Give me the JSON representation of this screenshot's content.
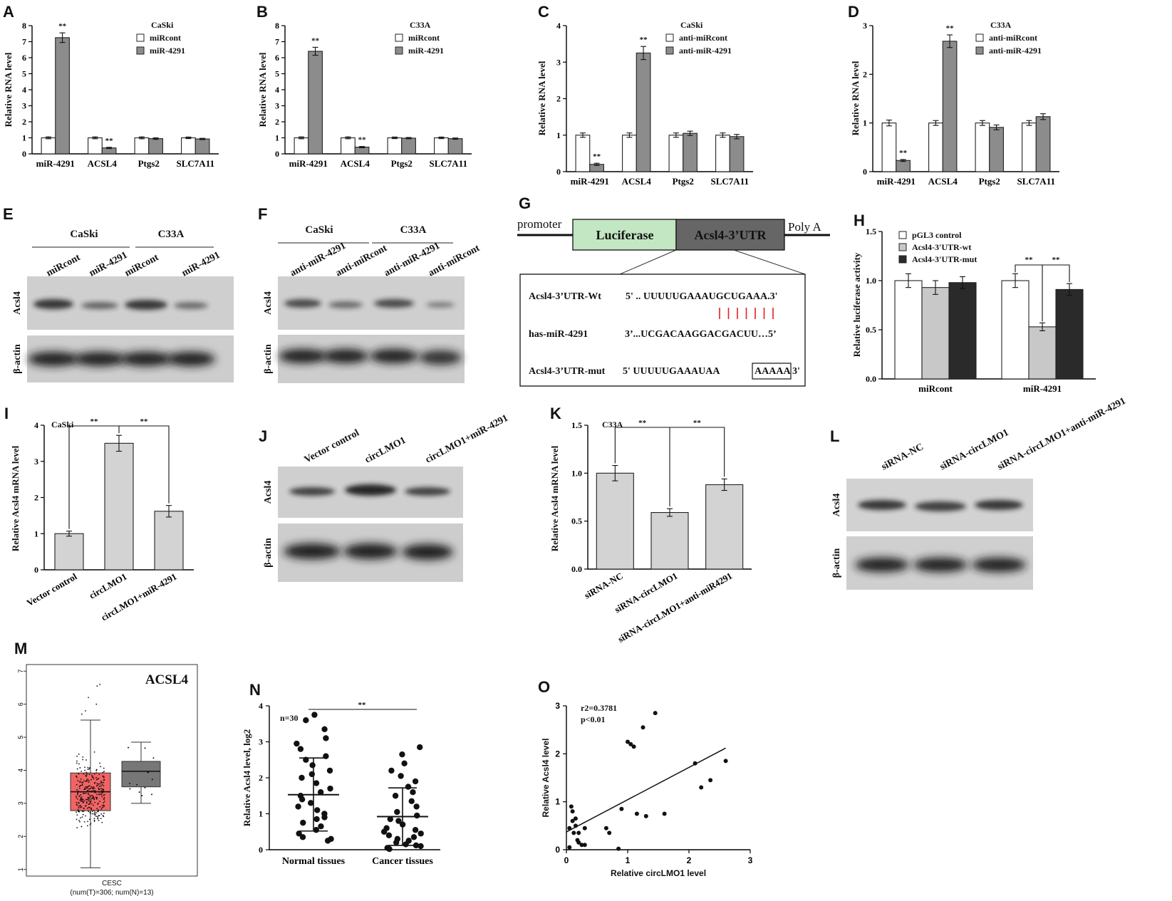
{
  "panels": {
    "A": {
      "letter": "A",
      "cell": "CaSki",
      "ylabel": "Relative RNA level",
      "legend": [
        "miRcont",
        "miR-4291"
      ],
      "sig": [
        "**",
        "**"
      ]
    },
    "B": {
      "letter": "B",
      "cell": "C33A",
      "ylabel": "Relative RNA level",
      "legend": [
        "miRcont",
        "miR-4291"
      ],
      "sig": [
        "**",
        "**"
      ]
    },
    "C": {
      "letter": "C",
      "cell": "CaSki",
      "ylabel": "Relative RNA level",
      "legend": [
        "anti-miRcont",
        "anti-miR-4291"
      ],
      "sig": [
        "**",
        "**"
      ]
    },
    "D": {
      "letter": "D",
      "cell": "C33A",
      "ylabel": "Relative RNA level",
      "legend": [
        "anti-miRcont",
        "anti-miR-4291"
      ],
      "sig": [
        "**",
        "**"
      ]
    },
    "E": {
      "letter": "E",
      "groups": [
        "CaSki",
        "C33A"
      ],
      "lanes": [
        "miRcont",
        "miR-4291",
        "miRcont",
        "miR-4291"
      ],
      "rows": [
        "Acsl4",
        "β-actin"
      ]
    },
    "F": {
      "letter": "F",
      "groups": [
        "CaSki",
        "C33A"
      ],
      "lanes": [
        "anti-miR-4291",
        "anti-miRcont",
        "anti-miR-4291",
        "anti-miRcont"
      ],
      "rows": [
        "Acsl4",
        "β-actin"
      ]
    },
    "G": {
      "letter": "G",
      "promoter": "promoter",
      "luciferase": "Luciferase",
      "utr": "Acsl4-3’UTR",
      "polya": "Poly A",
      "wt_label": "Acsl4-3’UTR-Wt",
      "wt_seq": "5' .. UUUUUGAAAUGCUGAAA.3'",
      "mir_label": "has-miR-4291",
      "mir_seq": "3’...UCGACAAGGACGACUU…5’",
      "mut_label": "Acsl4-3’UTR-mut",
      "mut_seq_a": "5' UUUUUGAAAUAA",
      "mut_seq_box": "AAAAA",
      "mut_seq_c": " 3'"
    },
    "H": {
      "letter": "H",
      "ylabel": "Relative luciferase activity",
      "legend": [
        "pGL3 control",
        "Acsl4-3'UTR-wt",
        "Acsl4-3'UTR-mut"
      ],
      "sig": "**"
    },
    "I": {
      "letter": "I",
      "cell": "CaSki",
      "ylabel": "Relative Acsl4 mRNA level",
      "sig": "**"
    },
    "J": {
      "letter": "J",
      "lanes": [
        "Vector control",
        "circLMO1",
        "circLMO1+miR-4291"
      ],
      "rows": [
        "Acsl4",
        "β-actin"
      ]
    },
    "K": {
      "letter": "K",
      "cell": "C33A",
      "ylabel": "Relative Acsl4 mRNA level",
      "sig": "**"
    },
    "L": {
      "letter": "L",
      "lanes": [
        "siRNA-NC",
        "siRNA-circLMO1",
        "siRNA-circLMO1+anti-miR-4291"
      ],
      "rows": [
        "Acsl4",
        "β-actin"
      ]
    },
    "M": {
      "letter": "M",
      "title": "ACSL4",
      "xlabel": "CESC",
      "xsub": "(num(T)=306; num(N)=13)"
    },
    "N": {
      "letter": "N",
      "ylabel": "Relative Acsl4 level, log2",
      "n": "n=30",
      "sig": "**"
    },
    "O": {
      "letter": "O",
      "ylabel": "Relative Acsl4 level",
      "xlabel": "Relative circLMO1 level",
      "r2": "r2=0.3781",
      "p": "p<0.01"
    }
  },
  "chart_data": [
    {
      "panel": "A",
      "type": "bar",
      "categories": [
        "miR-4291",
        "ACSL4",
        "Ptgs2",
        "SLC7A11"
      ],
      "ylim": [
        0,
        8
      ],
      "ticks": [
        0,
        1,
        2,
        3,
        4,
        5,
        6,
        7,
        8
      ],
      "series": [
        {
          "name": "miRcont",
          "values": [
            1.0,
            1.0,
            1.0,
            1.0
          ],
          "errors": [
            0.06,
            0.06,
            0.06,
            0.05
          ],
          "color": "#ffffff"
        },
        {
          "name": "miR-4291",
          "values": [
            7.25,
            0.37,
            0.95,
            0.93
          ],
          "errors": [
            0.3,
            0.04,
            0.05,
            0.04
          ],
          "color": "#8c8c8c"
        }
      ]
    },
    {
      "panel": "B",
      "type": "bar",
      "categories": [
        "miR-4291",
        "ACSL4",
        "Ptgs2",
        "SLC7A11"
      ],
      "ylim": [
        0,
        8
      ],
      "ticks": [
        0,
        1,
        2,
        3,
        4,
        5,
        6,
        7,
        8
      ],
      "series": [
        {
          "name": "miRcont",
          "values": [
            1.0,
            1.0,
            1.0,
            1.0
          ],
          "errors": [
            0.06,
            0.06,
            0.05,
            0.05
          ],
          "color": "#ffffff"
        },
        {
          "name": "miR-4291",
          "values": [
            6.4,
            0.42,
            0.98,
            0.95
          ],
          "errors": [
            0.25,
            0.04,
            0.04,
            0.04
          ],
          "color": "#8c8c8c"
        }
      ]
    },
    {
      "panel": "C",
      "type": "bar",
      "categories": [
        "miR-4291",
        "ACSL4",
        "Ptgs2",
        "SLC7A11"
      ],
      "ylim": [
        0,
        4
      ],
      "ticks": [
        0,
        1,
        2,
        3,
        4
      ],
      "series": [
        {
          "name": "anti-miRcont",
          "values": [
            1.0,
            1.0,
            1.0,
            1.0
          ],
          "errors": [
            0.06,
            0.06,
            0.06,
            0.06
          ],
          "color": "#ffffff"
        },
        {
          "name": "anti-miR-4291",
          "values": [
            0.2,
            3.25,
            1.05,
            0.96
          ],
          "errors": [
            0.03,
            0.18,
            0.06,
            0.06
          ],
          "color": "#8c8c8c"
        }
      ]
    },
    {
      "panel": "D",
      "type": "bar",
      "categories": [
        "miR-4291",
        "ACSL4",
        "Ptgs2",
        "SLC7A11"
      ],
      "ylim": [
        0,
        3
      ],
      "ticks": [
        0,
        1,
        2,
        3
      ],
      "series": [
        {
          "name": "anti-miRcont",
          "values": [
            1.0,
            1.0,
            1.0,
            1.0
          ],
          "errors": [
            0.06,
            0.05,
            0.05,
            0.05
          ],
          "color": "#ffffff"
        },
        {
          "name": "anti-miR-4291",
          "values": [
            0.23,
            2.68,
            0.91,
            1.13
          ],
          "errors": [
            0.02,
            0.13,
            0.05,
            0.06
          ],
          "color": "#8c8c8c"
        }
      ]
    },
    {
      "panel": "H",
      "type": "bar",
      "categories": [
        "miRcont",
        "miR-4291"
      ],
      "ylim": [
        0,
        1.5
      ],
      "ticks": [
        0.0,
        0.5,
        1.0,
        1.5
      ],
      "series": [
        {
          "name": "pGL3 control",
          "values": [
            1.0,
            1.0
          ],
          "errors": [
            0.07,
            0.07
          ],
          "color": "#ffffff"
        },
        {
          "name": "Acsl4-3'UTR-wt",
          "values": [
            0.93,
            0.53
          ],
          "errors": [
            0.07,
            0.04
          ],
          "color": "#c8c8c8"
        },
        {
          "name": "Acsl4-3'UTR-mut",
          "values": [
            0.98,
            0.91
          ],
          "errors": [
            0.06,
            0.06
          ],
          "color": "#2a2a2a"
        }
      ]
    },
    {
      "panel": "I",
      "type": "bar",
      "categories": [
        "Vector control",
        "circLMO1",
        "circLMO1+miR-4291"
      ],
      "ylim": [
        0,
        4
      ],
      "ticks": [
        0,
        1,
        2,
        3,
        4
      ],
      "values": [
        1.0,
        3.5,
        1.62
      ],
      "errors": [
        0.07,
        0.22,
        0.16
      ],
      "color": "#d3d3d3"
    },
    {
      "panel": "K",
      "type": "bar",
      "categories": [
        "siRNA-NC",
        "siRNA-circLMO1",
        "siRNA-circLMO1+anti-miR4291"
      ],
      "ylim": [
        0,
        1.5
      ],
      "ticks": [
        0.0,
        0.5,
        1.0,
        1.5
      ],
      "values": [
        1.0,
        0.59,
        0.88
      ],
      "errors": [
        0.08,
        0.04,
        0.06
      ],
      "color": "#d3d3d3"
    },
    {
      "panel": "M",
      "type": "box",
      "ylim": [
        0.8,
        7.2
      ],
      "ticks": [
        1,
        2,
        3,
        4,
        5,
        6,
        7
      ],
      "boxes": [
        {
          "name": "T",
          "min": 1.05,
          "q1": 2.78,
          "median": 3.35,
          "q3": 3.92,
          "max": 5.52,
          "color": "#f26464"
        },
        {
          "name": "N",
          "min": 3.0,
          "q1": 3.5,
          "median": 3.97,
          "q3": 4.27,
          "max": 4.85,
          "color": "#777777"
        }
      ]
    },
    {
      "panel": "N",
      "type": "scatter",
      "categories": [
        "Normal tissues",
        "Cancer tissues"
      ],
      "ylim": [
        0,
        4
      ],
      "ticks": [
        0,
        1,
        2,
        3,
        4
      ],
      "groups": [
        {
          "name": "Normal tissues",
          "mean": 1.53,
          "sd_low": 0.52,
          "sd_high": 2.55,
          "values": [
            3.75,
            3.6,
            3.35,
            3.1,
            2.95,
            2.8,
            2.6,
            2.5,
            2.35,
            2.2,
            2.1,
            2.0,
            1.85,
            1.7,
            1.6,
            1.5,
            1.4,
            1.3,
            1.2,
            1.1,
            1.0,
            0.9,
            0.85,
            0.75,
            0.65,
            0.55,
            0.45,
            0.35,
            0.3,
            0.25
          ]
        },
        {
          "name": "Cancer tissues",
          "mean": 0.92,
          "sd_low": 0.12,
          "sd_high": 1.72,
          "values": [
            2.85,
            2.65,
            2.4,
            2.2,
            2.05,
            1.9,
            1.75,
            1.6,
            1.5,
            1.35,
            1.2,
            1.05,
            0.95,
            0.85,
            0.8,
            0.7,
            0.6,
            0.55,
            0.5,
            0.45,
            0.4,
            0.35,
            0.3,
            0.25,
            0.2,
            0.15,
            0.12,
            0.1,
            0.05,
            0.02
          ]
        }
      ]
    },
    {
      "panel": "O",
      "type": "scatter",
      "xlim": [
        0,
        3
      ],
      "ylim": [
        0,
        3
      ],
      "ticks": [
        0,
        1,
        2,
        3
      ],
      "x": [
        0.05,
        0.08,
        0.1,
        0.12,
        0.15,
        0.18,
        0.2,
        0.25,
        0.3,
        0.1,
        0.15,
        0.05,
        0.2,
        0.3,
        0.65,
        0.7,
        0.85,
        0.9,
        1.0,
        1.05,
        1.1,
        1.15,
        1.25,
        1.3,
        1.45,
        1.6,
        2.1,
        2.2,
        2.35,
        2.6
      ],
      "y": [
        0.45,
        0.9,
        0.8,
        0.35,
        0.5,
        0.2,
        0.15,
        0.1,
        0.45,
        0.6,
        0.65,
        0.05,
        0.35,
        0.1,
        0.45,
        0.35,
        0.02,
        0.85,
        2.25,
        2.2,
        2.15,
        0.75,
        2.55,
        0.7,
        2.85,
        0.75,
        1.8,
        1.3,
        1.45,
        1.85
      ],
      "fit": {
        "x0": 0,
        "y0": 0.37,
        "x1": 2.6,
        "y1": 2.12
      }
    }
  ]
}
